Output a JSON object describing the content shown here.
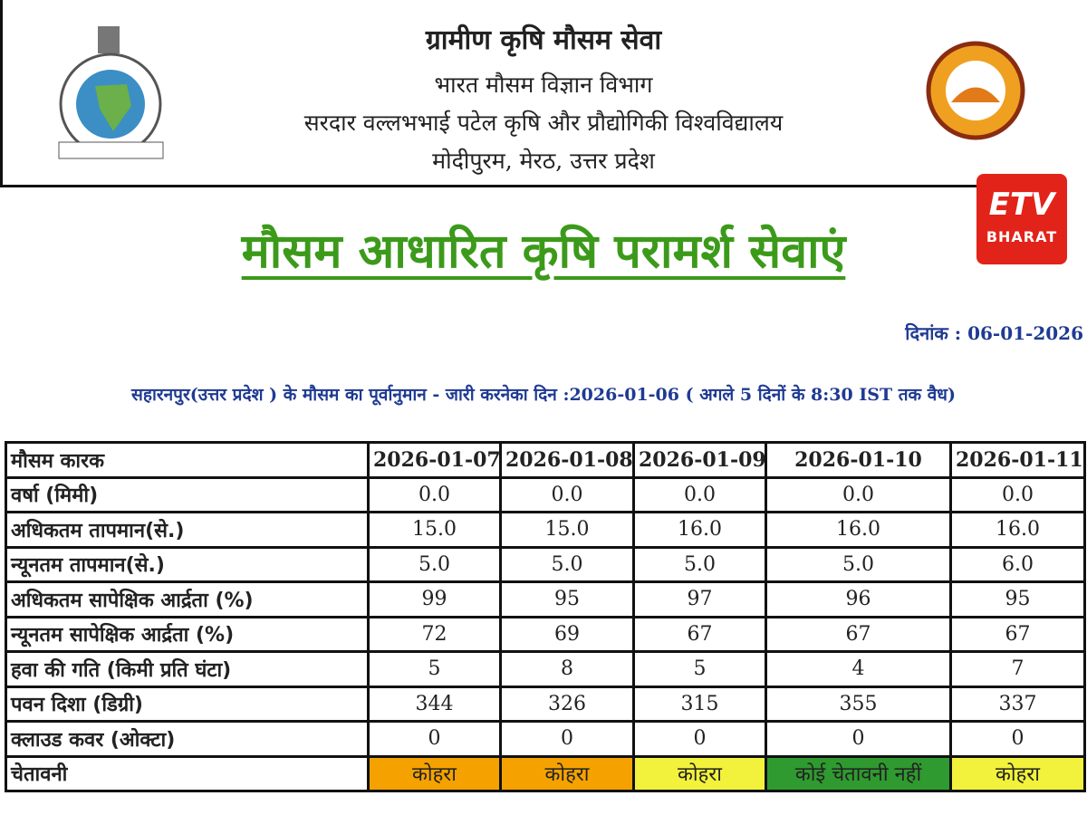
{
  "header": {
    "title": "ग्रामीण कृषि मौसम सेवा",
    "department": "भारत मौसम विज्ञान विभाग",
    "university": "सरदार वल्लभभाई पटेल कृषि और प्रौद्योगिकी विश्वविद्यालय",
    "location": "मोदीपुरम, मेरठ, उत्तर प्रदेश"
  },
  "logo": {
    "channel": "ETV",
    "brand": "BHARAT"
  },
  "heading": "मौसम आधारित कृषि परामर्श सेवाएं",
  "date": {
    "label": "दिनांक :",
    "value": "06-01-2026"
  },
  "forecast_line": "सहारनपुर(उत्तर प्रदेश ) के मौसम का पूर्वानुमान - जारी करनेका दिन :2026-01-06 ( अगले 5 दिनों के 8:30 IST तक वैध)",
  "table": {
    "columns": [
      "मौसम कारक",
      "2026-01-07",
      "2026-01-08",
      "2026-01-09",
      "2026-01-10",
      "2026-01-11"
    ],
    "rows": [
      [
        "वर्षा (मिमी)",
        "0.0",
        "0.0",
        "0.0",
        "0.0",
        "0.0"
      ],
      [
        "अधिकतम तापमान(से.)",
        "15.0",
        "15.0",
        "16.0",
        "16.0",
        "16.0"
      ],
      [
        "न्यूनतम तापमान(से.)",
        "5.0",
        "5.0",
        "5.0",
        "5.0",
        "6.0"
      ],
      [
        "अधिकतम सापेक्षिक आर्द्रता (%)",
        "99",
        "95",
        "97",
        "96",
        "95"
      ],
      [
        "न्यूनतम सापेक्षिक आर्द्रता (%)",
        "72",
        "69",
        "67",
        "67",
        "67"
      ],
      [
        "हवा की गति (किमी प्रति घंटा)",
        "5",
        "8",
        "5",
        "4",
        "7"
      ],
      [
        "पवन दिशा (डिग्री)",
        "344",
        "326",
        "315",
        "355",
        "337"
      ],
      [
        "क्लाउड कवर (ओक्टा)",
        "0",
        "0",
        "0",
        "0",
        "0"
      ],
      [
        "चेतावनी",
        "कोहरा",
        "कोहरा",
        "कोहरा",
        "कोई चेतावनी नहीं",
        "कोहरा"
      ]
    ],
    "warning_colors": [
      "#f5a200",
      "#f5a200",
      "#f2f23c",
      "#2f9a2f",
      "#f2f23c"
    ]
  }
}
